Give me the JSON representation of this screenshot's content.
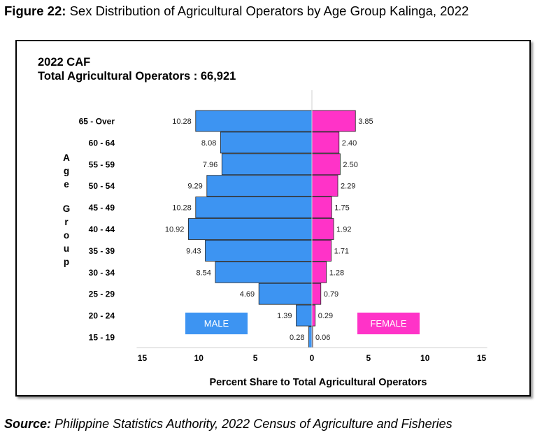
{
  "figure": {
    "label": "Figure 22:",
    "title": "Sex Distribution of Agricultural Operators by Age Group Kalinga, 2022"
  },
  "source": {
    "label": "Source:",
    "text": "Philippine Statistics Authority, 2022 Census of Agriculture and Fisheries"
  },
  "colors": {
    "male": "#3d94f2",
    "female": "#ff33c8",
    "border": "#222222"
  },
  "chart_data": {
    "type": "bar",
    "orientation": "horizontal",
    "layout": "population-pyramid",
    "title": "2022 CAF",
    "subtitle": "Total Agricultural Operators : 66,921",
    "ylabel": "Age Group",
    "xlabel": "Percent Share to Total Agricultural Operators",
    "xlim": [
      -15,
      15
    ],
    "xticks": [
      -15,
      -10,
      -5,
      0,
      5,
      10,
      15
    ],
    "xtick_labels": [
      "15",
      "10",
      "5",
      "0",
      "5",
      "10",
      "15"
    ],
    "categories": [
      "65 - Over",
      "60 - 64",
      "55 - 59",
      "50 - 54",
      "45 - 49",
      "40 - 44",
      "35 - 39",
      "30 - 34",
      "25 - 29",
      "20 - 24",
      "15 - 19"
    ],
    "series": [
      {
        "name": "MALE",
        "side": "left",
        "values": [
          10.28,
          8.08,
          7.96,
          9.29,
          10.28,
          10.92,
          9.43,
          8.54,
          4.69,
          1.39,
          0.28
        ],
        "labels": [
          "10.28",
          "8.08",
          "7.96",
          "9.29",
          "10.28",
          "10.92",
          "9.43",
          "8.54",
          "4.69",
          "1.39",
          "0.28"
        ]
      },
      {
        "name": "FEMALE",
        "side": "right",
        "values": [
          3.85,
          2.4,
          2.5,
          2.29,
          1.75,
          1.92,
          1.71,
          1.28,
          0.79,
          0.29,
          0.06
        ],
        "labels": [
          "3.85",
          "2.40",
          "2.50",
          "2.29",
          "1.75",
          "1.92",
          "1.71",
          "1.28",
          "0.79",
          "0.29",
          "0.06"
        ]
      }
    ],
    "grid": false,
    "legend": "inside-bottom"
  }
}
